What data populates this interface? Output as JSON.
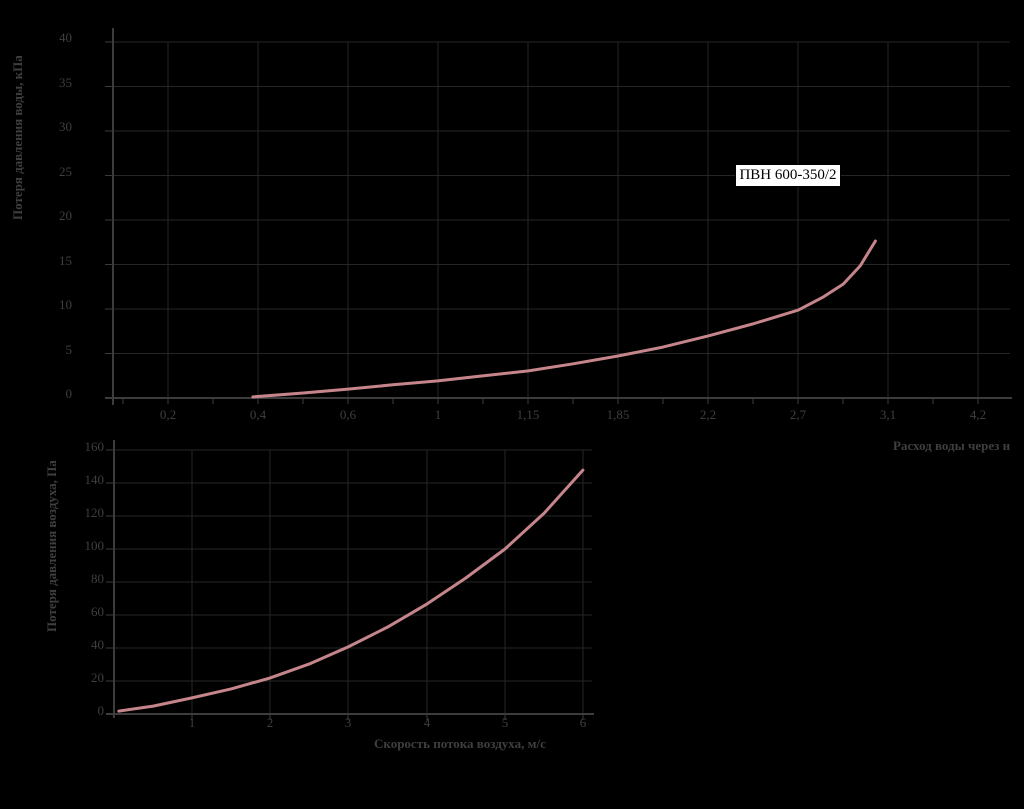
{
  "page": {
    "background": "#000000",
    "colors": {
      "grid": "#262626",
      "axis": "#3c3c3c",
      "text": "#3f3f3f",
      "curve": "#c5858b",
      "annotation_bg": "#ffffff",
      "annotation_border": "#000000",
      "annotation_text": "#000000"
    }
  },
  "annotation": {
    "text": "ПВН 600-350/2"
  },
  "chart_data": [
    {
      "id": "water-pressure-loss",
      "type": "line",
      "title": "",
      "annotation": "ПВН 600-350/2",
      "xlabel": "Расход воды через н",
      "ylabel": "Потеря давления воды, кПа",
      "x_tick_labels": [
        "0,2",
        "0,4",
        "0,6",
        "1",
        "1,15",
        "1,85",
        "2,2",
        "2,7",
        "3,1",
        "4,2"
      ],
      "y_tick_labels": [
        "40",
        "35",
        "30",
        "25",
        "20",
        "15",
        "10",
        "5",
        "0"
      ],
      "ylim": [
        0,
        40
      ],
      "grid": true,
      "legend": false,
      "line_color": "#c5858b",
      "points": [
        {
          "x": "0,4",
          "loss_kPa": 0.4
        },
        {
          "x": "0,6",
          "loss_kPa": 1.2
        },
        {
          "x": "1",
          "loss_kPa": 2.1
        },
        {
          "x": "1,15",
          "loss_kPa": 3.2
        },
        {
          "x": "1,85",
          "loss_kPa": 4.9
        },
        {
          "x": "2,2",
          "loss_kPa": 7.1
        },
        {
          "x": "2,7",
          "loss_kPa": 10.0
        },
        {
          "x": "3,1",
          "loss_kPa": 17.8
        }
      ],
      "path": [
        [
          0.156,
          0.997
        ],
        [
          0.212,
          0.986
        ],
        [
          0.262,
          0.975
        ],
        [
          0.312,
          0.963
        ],
        [
          0.362,
          0.952
        ],
        [
          0.412,
          0.938
        ],
        [
          0.463,
          0.924
        ],
        [
          0.513,
          0.904
        ],
        [
          0.563,
          0.882
        ],
        [
          0.613,
          0.857
        ],
        [
          0.663,
          0.826
        ],
        [
          0.713,
          0.792
        ],
        [
          0.764,
          0.753
        ],
        [
          0.792,
          0.716
        ],
        [
          0.814,
          0.68
        ],
        [
          0.833,
          0.629
        ],
        [
          0.85,
          0.559
        ]
      ]
    },
    {
      "id": "air-pressure-loss",
      "type": "line",
      "title": "",
      "xlabel": "Скорость потока воздуха, м/с",
      "ylabel": "Потеря давления воздуха, Па",
      "x_tick_labels": [
        "1",
        "2",
        "3",
        "4",
        "5",
        "6"
      ],
      "y_tick_labels": [
        "160",
        "140",
        "120",
        "100",
        "80",
        "60",
        "40",
        "20",
        "0"
      ],
      "ylim": [
        0,
        160
      ],
      "grid": true,
      "legend": false,
      "line_color": "#c5858b",
      "points": [
        {
          "x": 1,
          "loss_Pa": 10
        },
        {
          "x": 2,
          "loss_Pa": 22
        },
        {
          "x": 3,
          "loss_Pa": 41
        },
        {
          "x": 4,
          "loss_Pa": 67
        },
        {
          "x": 5,
          "loss_Pa": 100
        },
        {
          "x": 6,
          "loss_Pa": 148
        }
      ],
      "path": [
        [
          0.01,
          0.989
        ],
        [
          0.082,
          0.97
        ],
        [
          0.163,
          0.939
        ],
        [
          0.245,
          0.905
        ],
        [
          0.326,
          0.864
        ],
        [
          0.408,
          0.811
        ],
        [
          0.49,
          0.746
        ],
        [
          0.573,
          0.67
        ],
        [
          0.655,
          0.583
        ],
        [
          0.736,
          0.485
        ],
        [
          0.818,
          0.375
        ],
        [
          0.9,
          0.239
        ],
        [
          0.981,
          0.076
        ]
      ]
    }
  ]
}
